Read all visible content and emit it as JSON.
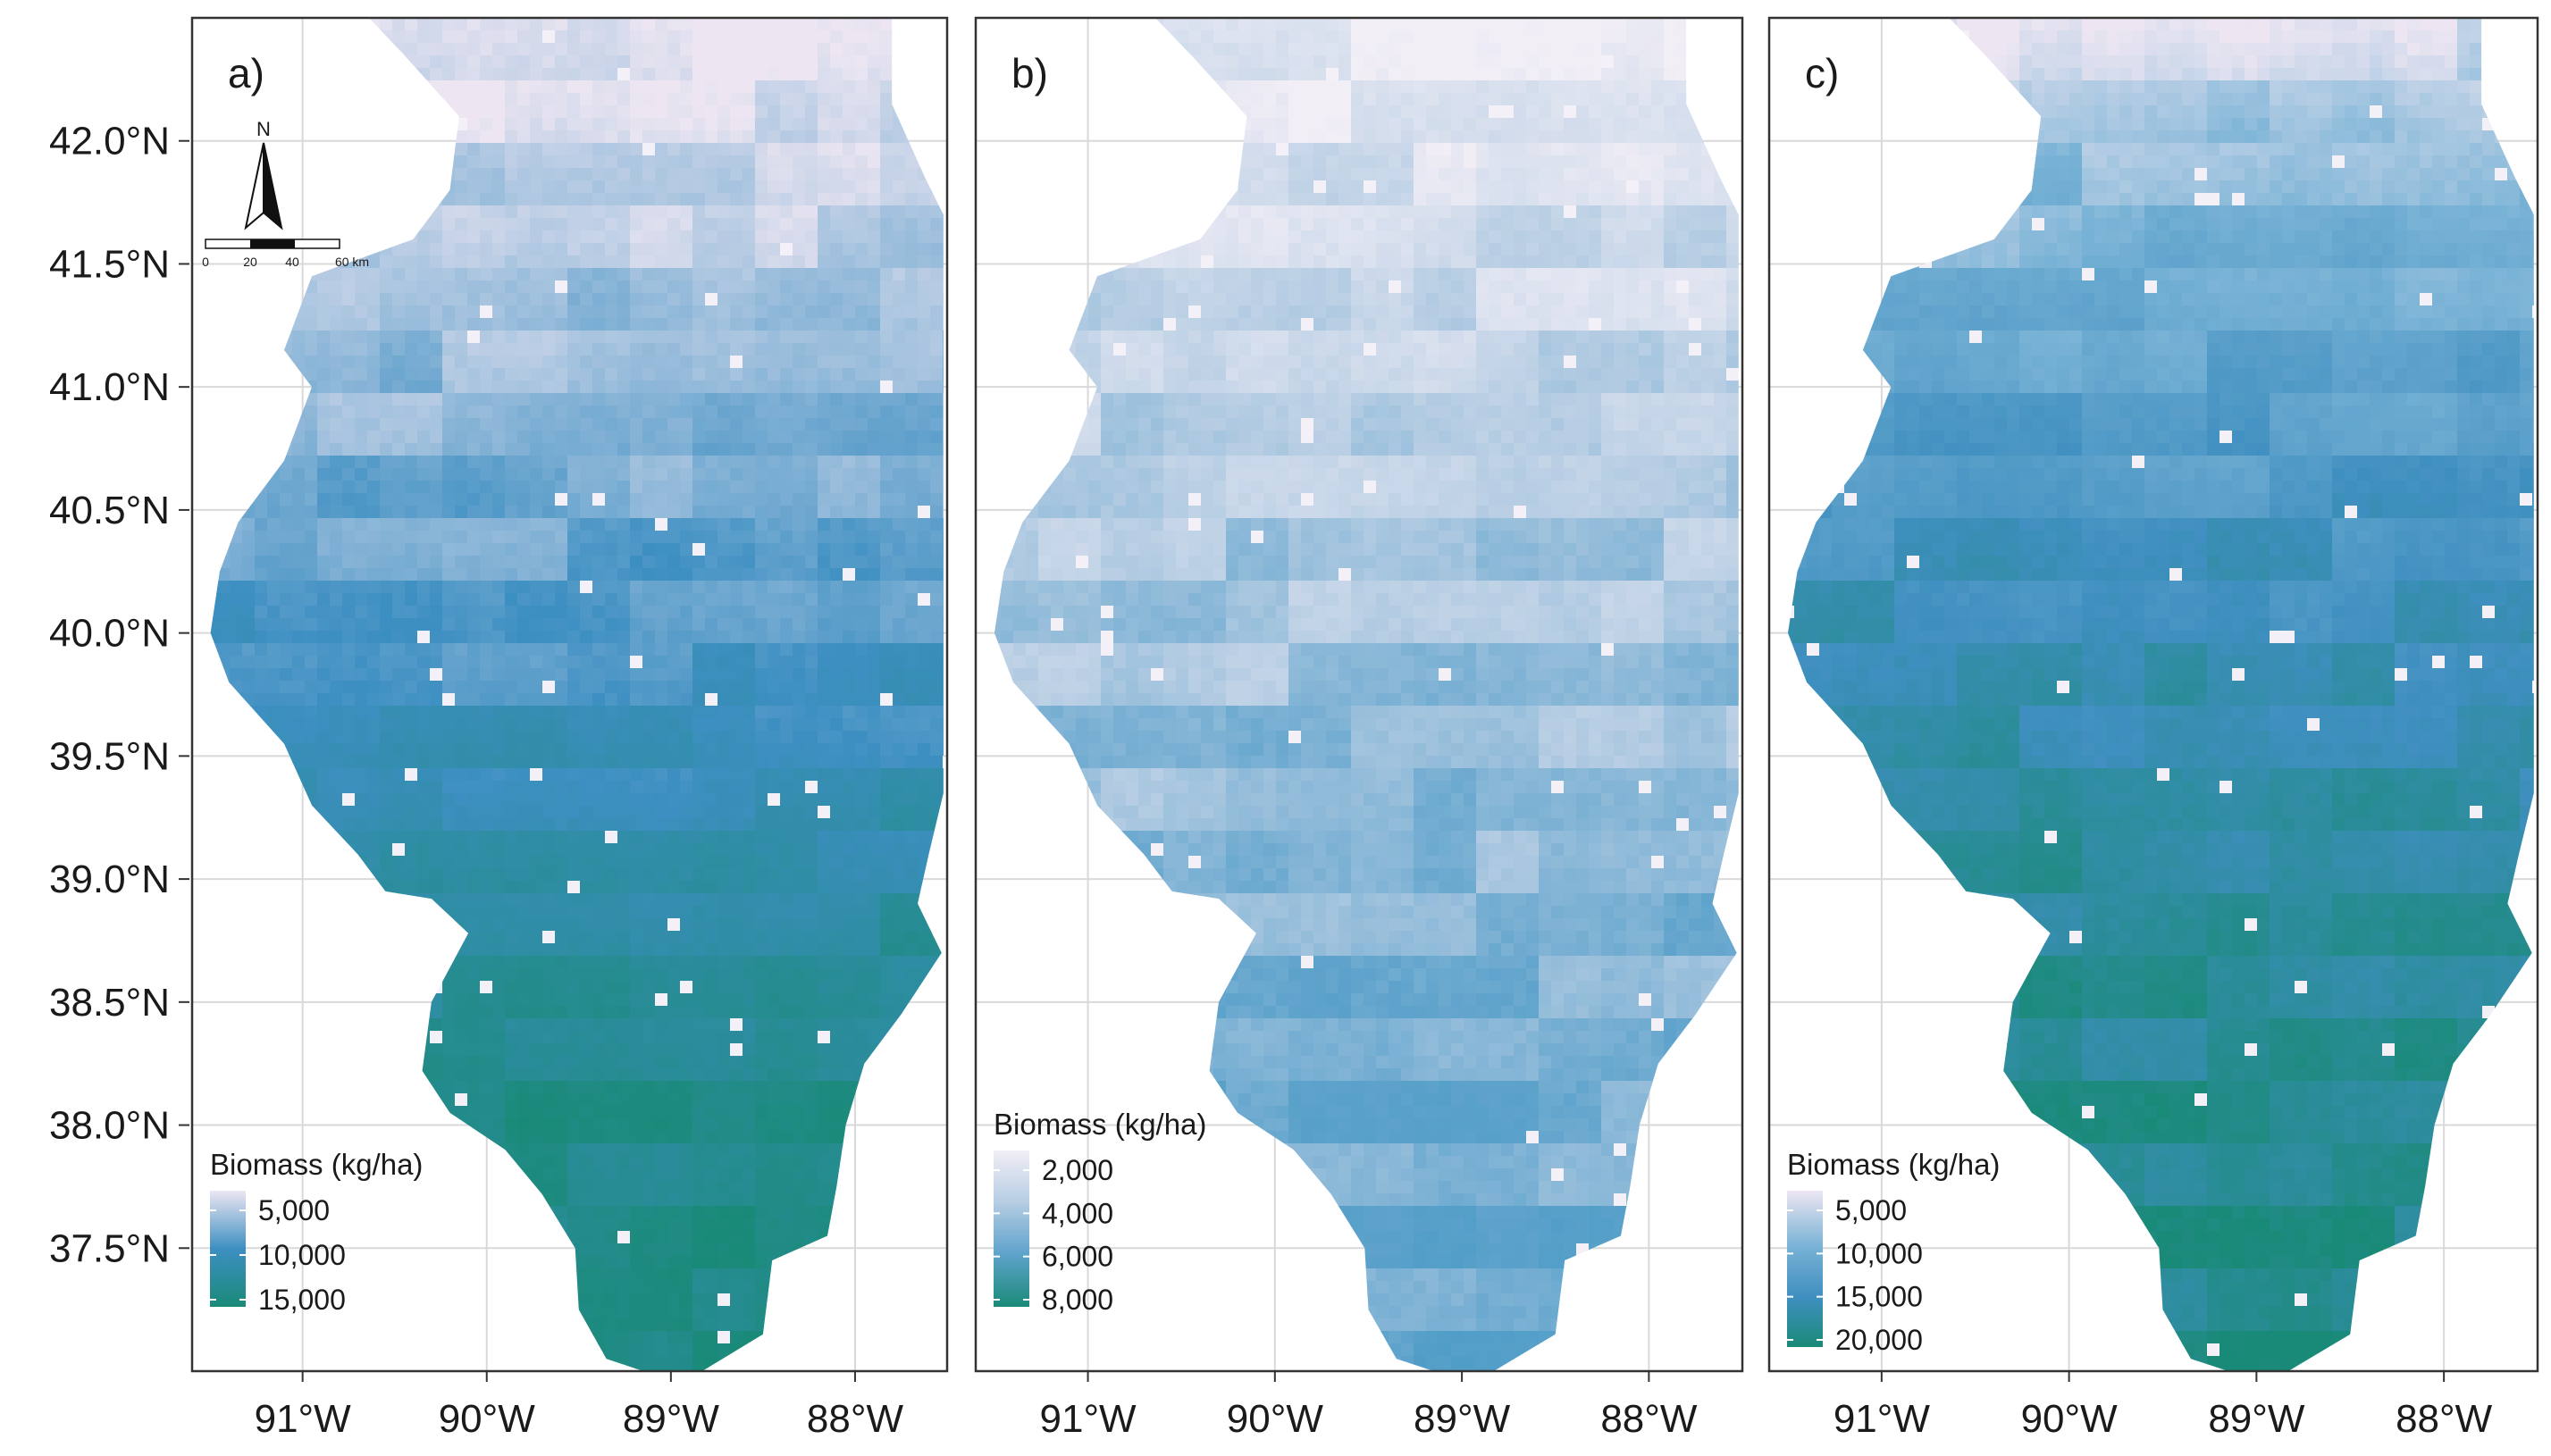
{
  "figure": {
    "panels": [
      {
        "label": "a)",
        "legend": {
          "title": "Biomass (kg/ha)",
          "ticks": [
            "5,000",
            "10,000",
            "15,000"
          ],
          "colors": [
            "#ede6f2",
            "#3d8fc2",
            "#1a8a78"
          ]
        },
        "show_north_arrow": true,
        "show_scale_bar": true,
        "gradient_level": [
          0.05,
          0.15,
          0.25,
          0.35,
          0.45,
          0.55,
          0.7,
          0.82,
          0.92,
          0.96,
          0.98
        ]
      },
      {
        "label": "b)",
        "legend": {
          "title": "Biomass (kg/ha)",
          "ticks": [
            "2,000",
            "4,000",
            "6,000",
            "8,000"
          ],
          "colors": [
            "#f2eef6",
            "#b6cde3",
            "#5fa3cc",
            "#3c96c1",
            "#1a8a78"
          ]
        },
        "show_north_arrow": false,
        "show_scale_bar": false,
        "gradient_level": [
          0.08,
          0.15,
          0.22,
          0.28,
          0.33,
          0.38,
          0.42,
          0.46,
          0.5,
          0.52,
          0.55
        ]
      },
      {
        "label": "c)",
        "legend": {
          "title": "Biomass (kg/ha)",
          "ticks": [
            "5,000",
            "10,000",
            "15,000",
            "20,000"
          ],
          "colors": [
            "#ede6f2",
            "#7ab3d6",
            "#3f8fc0",
            "#1a8a78"
          ]
        },
        "show_north_arrow": false,
        "show_scale_bar": false,
        "gradient_level": [
          0.1,
          0.3,
          0.45,
          0.58,
          0.7,
          0.78,
          0.85,
          0.9,
          0.94,
          0.96,
          0.98
        ]
      }
    ],
    "y_axis_labels": [
      "42.0°N",
      "41.5°N",
      "41.0°N",
      "40.5°N",
      "40.0°N",
      "39.5°N",
      "39.0°N",
      "38.5°N",
      "38.0°N",
      "37.5°N"
    ],
    "y_axis_values": [
      42.0,
      41.5,
      41.0,
      40.5,
      40.0,
      39.5,
      39.0,
      38.5,
      38.0,
      37.5
    ],
    "x_axis_labels": [
      "91°W",
      "90°W",
      "89°W",
      "88°W"
    ],
    "x_axis_values": [
      -91,
      -90,
      -89,
      -88
    ],
    "lon_range": [
      -91.6,
      -87.5
    ],
    "lat_range": [
      37.0,
      42.5
    ],
    "north_arrow_label": "N",
    "scale_bar_labels": [
      "0",
      "20",
      "40",
      "60 km"
    ],
    "colors": {
      "panel_border": "#333333",
      "grid": "#d9d9d9",
      "background": "#ffffff"
    }
  }
}
